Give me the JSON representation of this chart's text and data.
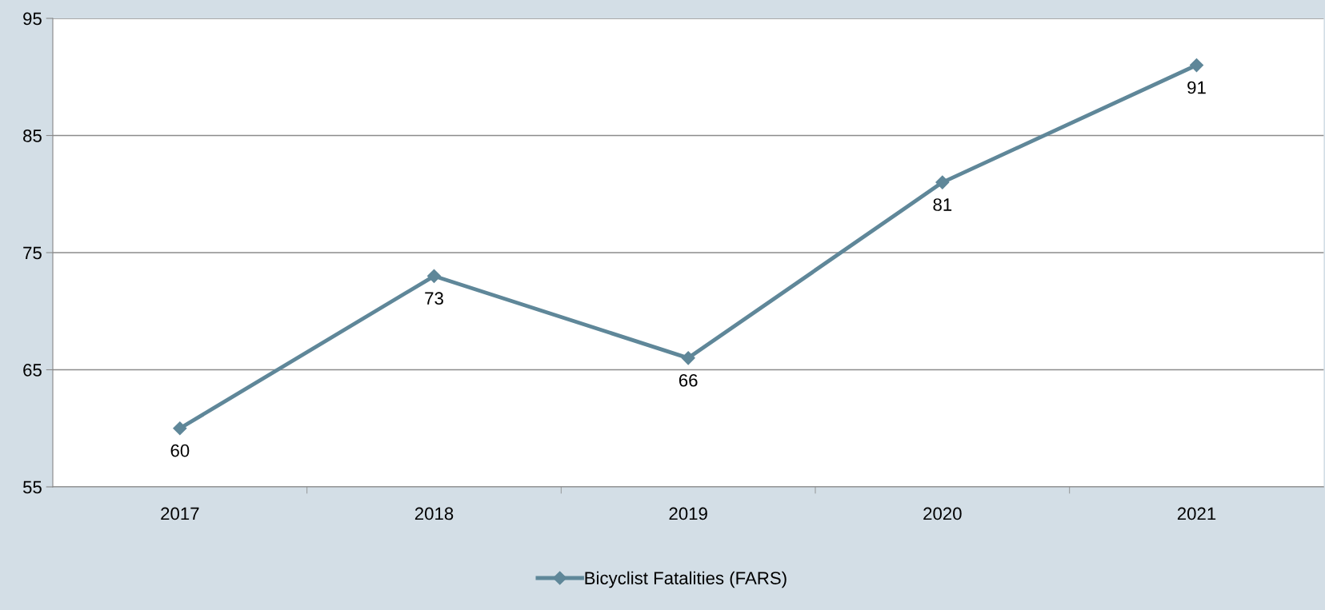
{
  "chart_data": {
    "type": "line",
    "categories": [
      "2017",
      "2018",
      "2019",
      "2020",
      "2021"
    ],
    "series": [
      {
        "name": "Bicyclist Fatalities (FARS)",
        "color": "#5f8799",
        "values": [
          60,
          73,
          66,
          81,
          91
        ]
      }
    ],
    "ylim": [
      55,
      95
    ],
    "yticks": [
      55,
      65,
      75,
      85,
      95
    ],
    "grid": "y",
    "legend": "bottom",
    "marker": "diamond",
    "line_style": "solid",
    "data_labels": true
  }
}
